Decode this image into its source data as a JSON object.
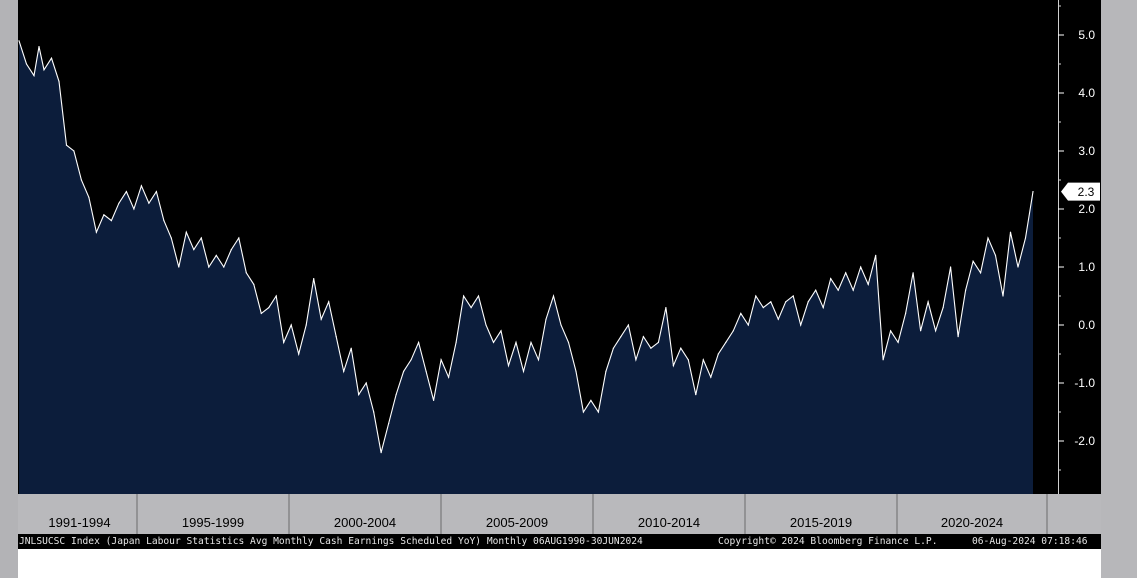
{
  "chart_data": {
    "type": "area",
    "title": "",
    "x_range": [
      "1990-08",
      "2024-06"
    ],
    "ylim": [
      -3.0,
      5.7
    ],
    "yticks": [
      -2.0,
      -1.0,
      0.0,
      1.0,
      2.0,
      3.0,
      4.0,
      5.0
    ],
    "ytick_labels": [
      "-2.0",
      "-1.0",
      "0.0",
      "1.0",
      "2.0",
      "3.0",
      "4.0",
      "5.0"
    ],
    "x_period_labels": [
      "1991-1994",
      "1995-1999",
      "2000-2004",
      "2005-2009",
      "2010-2014",
      "2015-2019",
      "2020-2024"
    ],
    "last_value_label": "2.3",
    "grid": false,
    "series": [
      {
        "color": "#ffffff",
        "fill": "#0c1d3b",
        "points": [
          [
            "1990-08",
            4.9
          ],
          [
            "1990-11",
            4.5
          ],
          [
            "1991-02",
            4.3
          ],
          [
            "1991-04",
            4.8
          ],
          [
            "1991-06",
            4.4
          ],
          [
            "1991-09",
            4.6
          ],
          [
            "1991-12",
            4.2
          ],
          [
            "1992-03",
            3.1
          ],
          [
            "1992-06",
            3.0
          ],
          [
            "1992-09",
            2.5
          ],
          [
            "1992-12",
            2.2
          ],
          [
            "1993-03",
            1.6
          ],
          [
            "1993-06",
            1.9
          ],
          [
            "1993-09",
            1.8
          ],
          [
            "1993-12",
            2.1
          ],
          [
            "1994-03",
            2.3
          ],
          [
            "1994-06",
            2.0
          ],
          [
            "1994-09",
            2.4
          ],
          [
            "1994-12",
            2.1
          ],
          [
            "1995-03",
            2.3
          ],
          [
            "1995-06",
            1.8
          ],
          [
            "1995-09",
            1.5
          ],
          [
            "1995-12",
            1.0
          ],
          [
            "1996-03",
            1.6
          ],
          [
            "1996-06",
            1.3
          ],
          [
            "1996-09",
            1.5
          ],
          [
            "1996-12",
            1.0
          ],
          [
            "1997-03",
            1.2
          ],
          [
            "1997-06",
            1.0
          ],
          [
            "1997-09",
            1.3
          ],
          [
            "1997-12",
            1.5
          ],
          [
            "1998-03",
            0.9
          ],
          [
            "1998-06",
            0.7
          ],
          [
            "1998-09",
            0.2
          ],
          [
            "1998-12",
            0.3
          ],
          [
            "1999-03",
            0.5
          ],
          [
            "1999-06",
            -0.3
          ],
          [
            "1999-09",
            0.0
          ],
          [
            "1999-12",
            -0.5
          ],
          [
            "2000-03",
            0.0
          ],
          [
            "2000-06",
            0.8
          ],
          [
            "2000-09",
            0.1
          ],
          [
            "2000-12",
            0.4
          ],
          [
            "2001-03",
            -0.2
          ],
          [
            "2001-06",
            -0.8
          ],
          [
            "2001-09",
            -0.4
          ],
          [
            "2001-12",
            -1.2
          ],
          [
            "2002-03",
            -1.0
          ],
          [
            "2002-06",
            -1.5
          ],
          [
            "2002-09",
            -2.2
          ],
          [
            "2002-12",
            -1.7
          ],
          [
            "2003-03",
            -1.2
          ],
          [
            "2003-06",
            -0.8
          ],
          [
            "2003-09",
            -0.6
          ],
          [
            "2003-12",
            -0.3
          ],
          [
            "2004-03",
            -0.8
          ],
          [
            "2004-06",
            -1.3
          ],
          [
            "2004-09",
            -0.6
          ],
          [
            "2004-12",
            -0.9
          ],
          [
            "2005-03",
            -0.3
          ],
          [
            "2005-06",
            0.5
          ],
          [
            "2005-09",
            0.3
          ],
          [
            "2005-12",
            0.5
          ],
          [
            "2006-03",
            0.0
          ],
          [
            "2006-06",
            -0.3
          ],
          [
            "2006-09",
            -0.1
          ],
          [
            "2006-12",
            -0.7
          ],
          [
            "2007-03",
            -0.3
          ],
          [
            "2007-06",
            -0.8
          ],
          [
            "2007-09",
            -0.3
          ],
          [
            "2007-12",
            -0.6
          ],
          [
            "2008-03",
            0.1
          ],
          [
            "2008-06",
            0.5
          ],
          [
            "2008-09",
            0.0
          ],
          [
            "2008-12",
            -0.3
          ],
          [
            "2009-03",
            -0.8
          ],
          [
            "2009-06",
            -1.5
          ],
          [
            "2009-09",
            -1.3
          ],
          [
            "2009-12",
            -1.5
          ],
          [
            "2010-03",
            -0.8
          ],
          [
            "2010-06",
            -0.4
          ],
          [
            "2010-09",
            -0.2
          ],
          [
            "2010-12",
            0.0
          ],
          [
            "2011-03",
            -0.6
          ],
          [
            "2011-06",
            -0.2
          ],
          [
            "2011-09",
            -0.4
          ],
          [
            "2011-12",
            -0.3
          ],
          [
            "2012-03",
            0.3
          ],
          [
            "2012-06",
            -0.7
          ],
          [
            "2012-09",
            -0.4
          ],
          [
            "2012-12",
            -0.6
          ],
          [
            "2013-03",
            -1.2
          ],
          [
            "2013-06",
            -0.6
          ],
          [
            "2013-09",
            -0.9
          ],
          [
            "2013-12",
            -0.5
          ],
          [
            "2014-03",
            -0.3
          ],
          [
            "2014-06",
            -0.1
          ],
          [
            "2014-09",
            0.2
          ],
          [
            "2014-12",
            0.0
          ],
          [
            "2015-03",
            0.5
          ],
          [
            "2015-06",
            0.3
          ],
          [
            "2015-09",
            0.4
          ],
          [
            "2015-12",
            0.1
          ],
          [
            "2016-03",
            0.4
          ],
          [
            "2016-06",
            0.5
          ],
          [
            "2016-09",
            0.0
          ],
          [
            "2016-12",
            0.4
          ],
          [
            "2017-03",
            0.6
          ],
          [
            "2017-06",
            0.3
          ],
          [
            "2017-09",
            0.8
          ],
          [
            "2017-12",
            0.6
          ],
          [
            "2018-03",
            0.9
          ],
          [
            "2018-06",
            0.6
          ],
          [
            "2018-09",
            1.0
          ],
          [
            "2018-12",
            0.7
          ],
          [
            "2019-03",
            1.2
          ],
          [
            "2019-06",
            -0.6
          ],
          [
            "2019-09",
            -0.1
          ],
          [
            "2019-12",
            -0.3
          ],
          [
            "2020-03",
            0.2
          ],
          [
            "2020-06",
            0.9
          ],
          [
            "2020-09",
            -0.1
          ],
          [
            "2020-12",
            0.4
          ],
          [
            "2021-03",
            -0.1
          ],
          [
            "2021-06",
            0.3
          ],
          [
            "2021-09",
            1.0
          ],
          [
            "2021-12",
            -0.2
          ],
          [
            "2022-03",
            0.6
          ],
          [
            "2022-06",
            1.1
          ],
          [
            "2022-09",
            0.9
          ],
          [
            "2022-12",
            1.5
          ],
          [
            "2023-03",
            1.2
          ],
          [
            "2023-06",
            0.5
          ],
          [
            "2023-09",
            1.6
          ],
          [
            "2023-12",
            1.0
          ],
          [
            "2024-03",
            1.5
          ],
          [
            "2024-06",
            2.3
          ]
        ]
      }
    ]
  },
  "footer": {
    "series_info": "JNLSUCSC Index (Japan Labour Statistics Avg Monthly Cash Earnings Scheduled YoY)  Monthly 06AUG1990-30JUN2024",
    "copyright": "Copyright© 2024 Bloomberg Finance L.P.",
    "timestamp": "06-Aug-2024 07:18:46"
  }
}
